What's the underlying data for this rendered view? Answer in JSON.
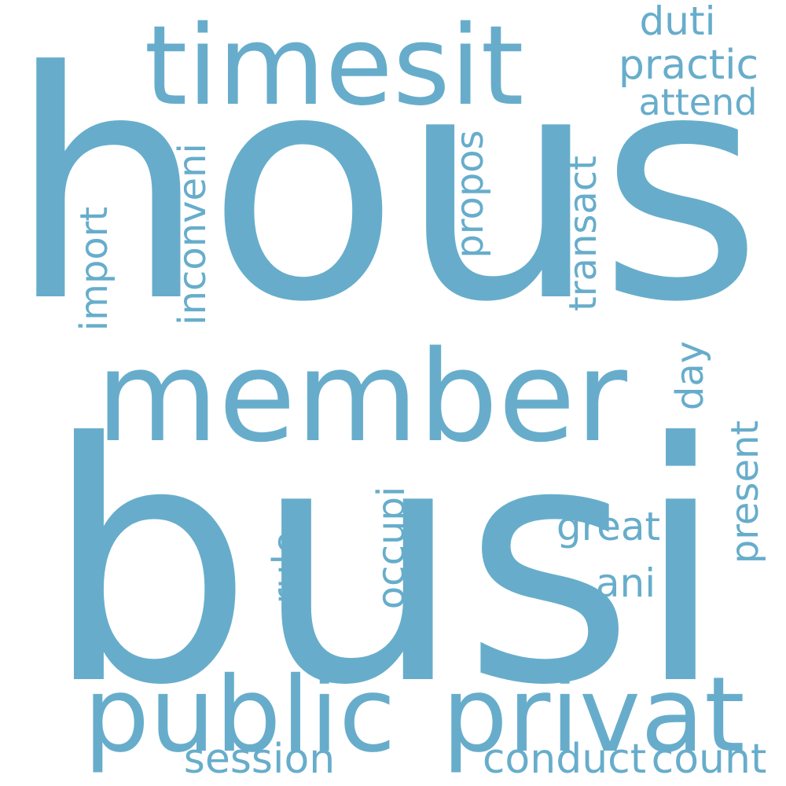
{
  "word_color": "#67adcb",
  "background": "#ffffff",
  "words": {
    "hous": "hous",
    "busi": "busi",
    "member": "member",
    "timesit": "timesit",
    "public": "public",
    "privat": "privat",
    "duti": "duti",
    "practic": "practic",
    "attend": "attend",
    "inconveni": "inconveni",
    "import": "import",
    "propos": "propos",
    "transact": "transact",
    "day": "day",
    "present": "present",
    "great": "great",
    "ani": "ani",
    "occupi": "occupi",
    "rule": "rule",
    "session": "session",
    "conduct": "conduct",
    "count": "count"
  }
}
